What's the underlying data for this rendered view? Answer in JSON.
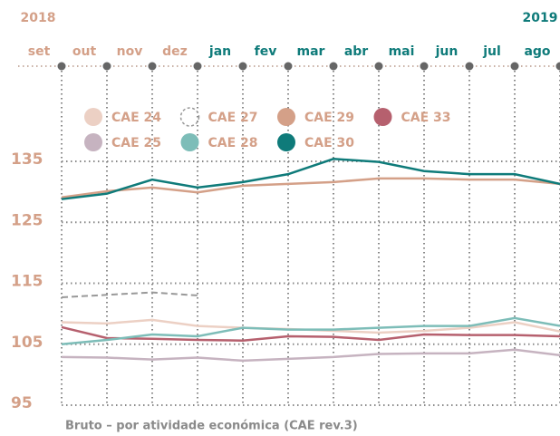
{
  "chart_data": {
    "type": "line",
    "years": [
      {
        "label": "2018",
        "color": "#d4a088"
      },
      {
        "label": "2019",
        "color": "#0f7b7a"
      }
    ],
    "categories": [
      "set",
      "out",
      "nov",
      "dez",
      "jan",
      "fev",
      "mar",
      "abr",
      "mai",
      "jun",
      "jul",
      "ago"
    ],
    "category_colors": [
      "#d4a088",
      "#d4a088",
      "#d4a088",
      "#d4a088",
      "#0f7b7a",
      "#0f7b7a",
      "#0f7b7a",
      "#0f7b7a",
      "#0f7b7a",
      "#0f7b7a",
      "#0f7b7a",
      "#0f7b7a"
    ],
    "series": [
      {
        "name": "CAE 24",
        "color": "#ecd0c4",
        "values": [
          108.6,
          108.4,
          109.0,
          108.0,
          107.7,
          107.5,
          107.2,
          106.9,
          107.2,
          107.7,
          108.6,
          107.1
        ]
      },
      {
        "name": "CAE 27",
        "color": "#999999",
        "dashed": true,
        "values": [
          112.7,
          113.1,
          113.5,
          113.0,
          null,
          null,
          null,
          null,
          null,
          null,
          null,
          null
        ]
      },
      {
        "name": "CAE 29",
        "color": "#d4a088",
        "values": [
          129.1,
          130.1,
          130.7,
          129.9,
          131.0,
          131.3,
          131.6,
          132.2,
          132.2,
          132.0,
          132.0,
          131.3
        ]
      },
      {
        "name": "CAE 33",
        "color": "#b6606e",
        "values": [
          107.8,
          106.0,
          105.9,
          105.7,
          105.6,
          106.3,
          106.2,
          105.7,
          106.6,
          106.5,
          106.5,
          106.3
        ]
      },
      {
        "name": "CAE 25",
        "color": "#c6b3c0",
        "values": [
          102.9,
          102.8,
          102.5,
          102.8,
          102.3,
          102.6,
          102.9,
          103.4,
          103.5,
          103.5,
          104.1,
          103.2
        ]
      },
      {
        "name": "CAE 28",
        "color": "#7dbdb8",
        "values": [
          105.0,
          105.7,
          106.6,
          106.3,
          107.7,
          107.4,
          107.4,
          107.7,
          108.0,
          108.0,
          109.3,
          108.0
        ]
      },
      {
        "name": "CAE 30",
        "color": "#0f7b7a",
        "values": [
          128.8,
          129.7,
          132.0,
          130.7,
          131.6,
          132.9,
          135.4,
          134.9,
          133.4,
          132.9,
          132.9,
          131.3
        ]
      }
    ],
    "ylim": [
      95,
      135
    ],
    "yticks": [
      95,
      105,
      115,
      125,
      135
    ],
    "grid": true,
    "caption": "Bruto – por atividade económica (CAE rev.3)"
  }
}
